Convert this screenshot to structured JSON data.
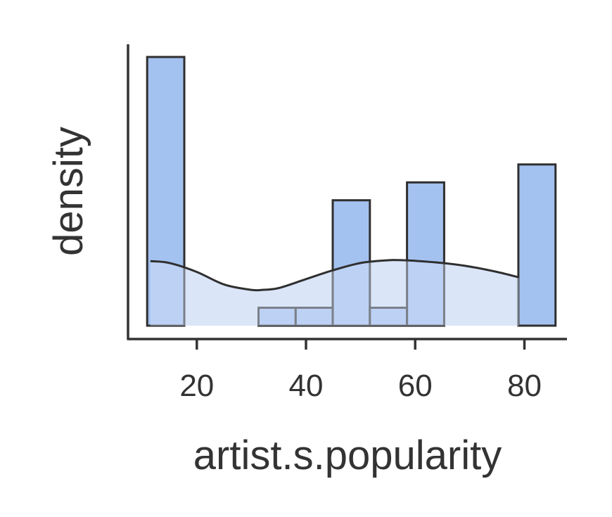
{
  "chart_data": {
    "type": "bar",
    "subtype": "histogram-with-density",
    "xlabel": "artist.s.popularity",
    "ylabel": "density",
    "xlim": [
      7.4,
      87.8
    ],
    "ylim": [
      0,
      15
    ],
    "x_ticks": [
      20,
      40,
      60,
      80
    ],
    "y_ticks": [],
    "bins": [
      {
        "x0": 10.9,
        "x1": 17.7,
        "value": 15
      },
      {
        "x0": 17.7,
        "x1": 24.5,
        "value": 0
      },
      {
        "x0": 24.5,
        "x1": 31.3,
        "value": 0
      },
      {
        "x0": 31.3,
        "x1": 38.1,
        "value": 1
      },
      {
        "x0": 38.1,
        "x1": 44.9,
        "value": 1
      },
      {
        "x0": 44.9,
        "x1": 51.7,
        "value": 7
      },
      {
        "x0": 51.7,
        "x1": 58.5,
        "value": 1
      },
      {
        "x0": 58.5,
        "x1": 65.3,
        "value": 8
      },
      {
        "x0": 65.3,
        "x1": 72.1,
        "value": 0
      },
      {
        "x0": 72.1,
        "x1": 78.9,
        "value": 0
      },
      {
        "x0": 78.9,
        "x1": 85.7,
        "value": 9
      }
    ],
    "density_curve": {
      "x": [
        11.5,
        15,
        20,
        25,
        30,
        32,
        35,
        40,
        45,
        50,
        55,
        57,
        60,
        65,
        70,
        75,
        79
      ],
      "y": [
        3.6,
        3.5,
        3.0,
        2.3,
        2.0,
        2.0,
        2.1,
        2.6,
        3.1,
        3.5,
        3.65,
        3.66,
        3.62,
        3.5,
        3.3,
        3.0,
        2.7
      ]
    },
    "grid": false,
    "legend": "none",
    "colors": {
      "bar_fill": "#a4c2f0",
      "bar_edge": "#2f2f2f",
      "kde_fill": "#dae5f8",
      "kde_line": "#2f2f2f",
      "axis": "#333333"
    }
  }
}
